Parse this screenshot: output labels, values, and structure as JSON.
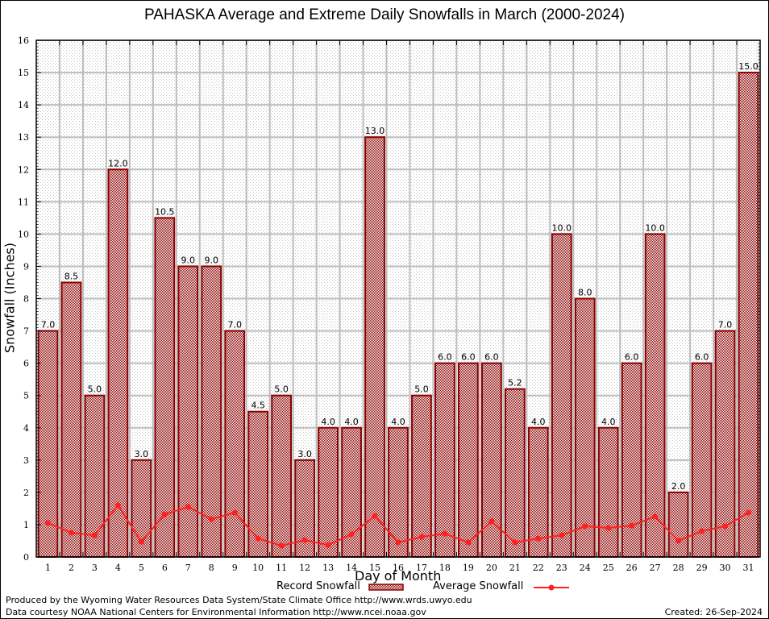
{
  "chart_data": {
    "type": "bar",
    "title": "PAHASKA Average and Extreme Daily Snowfalls in March (2000-2024)",
    "xlabel": "Day of Month",
    "ylabel": "Snowfall (Inches)",
    "ylim": [
      0,
      16
    ],
    "yticks": [
      0,
      1,
      2,
      3,
      4,
      5,
      6,
      7,
      8,
      9,
      10,
      11,
      12,
      13,
      14,
      15,
      16
    ],
    "grid": true,
    "legend_placement": "bottom-center",
    "categories": [
      "1",
      "2",
      "3",
      "4",
      "5",
      "6",
      "7",
      "8",
      "9",
      "10",
      "11",
      "12",
      "13",
      "14",
      "15",
      "16",
      "17",
      "18",
      "19",
      "20",
      "21",
      "22",
      "23",
      "24",
      "25",
      "26",
      "27",
      "28",
      "29",
      "30",
      "31"
    ],
    "series": [
      {
        "name": "Record Snowfall",
        "type": "bar",
        "color": "#8b0000",
        "values": [
          7.0,
          8.5,
          5.0,
          12.0,
          3.0,
          10.5,
          9.0,
          9.0,
          7.0,
          4.5,
          5.0,
          3.0,
          4.0,
          4.0,
          13.0,
          4.0,
          5.0,
          6.0,
          6.0,
          6.0,
          5.2,
          4.0,
          10.0,
          8.0,
          4.0,
          6.0,
          10.0,
          2.0,
          6.0,
          7.0,
          15.0
        ],
        "labels": [
          "7.0",
          "8.5",
          "5.0",
          "12.0",
          "3.0",
          "10.5",
          "9.0",
          "9.0",
          "7.0",
          "4.5",
          "5.0",
          "3.0",
          "4.0",
          "4.0",
          "13.0",
          "4.0",
          "5.0",
          "6.0",
          "6.0",
          "6.0",
          "5.2",
          "4.0",
          "10.0",
          "8.0",
          "4.0",
          "6.0",
          "10.0",
          "2.0",
          "6.0",
          "7.0",
          "15.0"
        ]
      },
      {
        "name": "Average Snowfall",
        "type": "line",
        "color": "#ff2020",
        "values": [
          1.05,
          0.75,
          0.67,
          1.6,
          0.47,
          1.32,
          1.55,
          1.17,
          1.37,
          0.57,
          0.35,
          0.52,
          0.37,
          0.7,
          1.27,
          0.45,
          0.62,
          0.72,
          0.45,
          1.1,
          0.45,
          0.57,
          0.67,
          0.95,
          0.9,
          0.97,
          1.25,
          0.5,
          0.8,
          0.95,
          1.37
        ]
      }
    ]
  },
  "footer": {
    "produced_by": "Produced by the Wyoming Water Resources Data System/State Climate Office http://www.wrds.uwyo.edu",
    "data_courtesy": "Data courtesy NOAA National Centers for Environmental Information http://www.ncei.noaa.gov",
    "created": "Created: 26-Sep-2024"
  }
}
